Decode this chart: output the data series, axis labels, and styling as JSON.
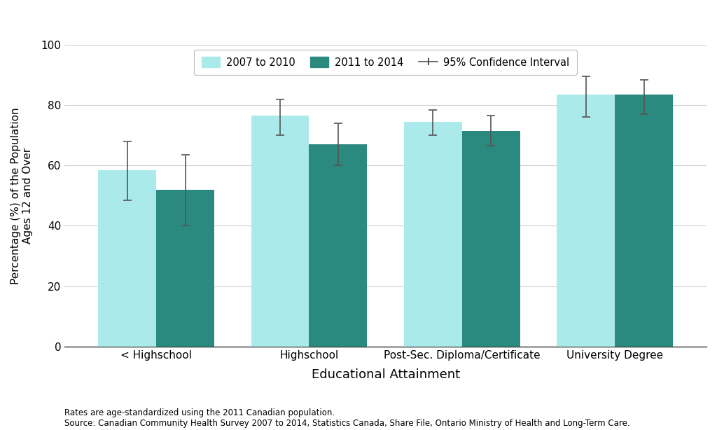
{
  "categories": [
    "< Highschool",
    "Highschool",
    "Post-Sec. Diploma/Certificate",
    "University Degree"
  ],
  "values_2007": [
    58.5,
    76.5,
    74.5,
    83.5
  ],
  "values_2011": [
    52.0,
    67.0,
    71.5,
    83.5
  ],
  "ci_2007_lower": [
    48.5,
    70.0,
    70.0,
    76.0
  ],
  "ci_2007_upper": [
    68.0,
    82.0,
    78.5,
    89.5
  ],
  "ci_2011_lower": [
    40.0,
    60.0,
    66.5,
    77.0
  ],
  "ci_2011_upper": [
    63.5,
    74.0,
    76.5,
    88.5
  ],
  "color_2007": "#aaeaea",
  "color_2011": "#2a8a80",
  "bar_width": 0.38,
  "ylim": [
    0,
    100
  ],
  "yticks": [
    0,
    20,
    40,
    60,
    80,
    100
  ],
  "xlabel": "Educational Attainment",
  "ylabel": "Percentage (%) of the Population\nAges 12 and Over",
  "legend_label_2007": "2007 to 2010",
  "legend_label_2011": "2011 to 2014",
  "legend_label_ci": "95% Confidence Interval",
  "footnote_line1": "Rates are age-standardized using the 2011 Canadian population.",
  "footnote_line2": "Source: Canadian Community Health Survey 2007 to 2014, Statistics Canada, Share File, Ontario Ministry of Health and Long-Term Care.",
  "grid_color": "#d0d0d0",
  "background_color": "#ffffff",
  "error_bar_color": "#555555"
}
